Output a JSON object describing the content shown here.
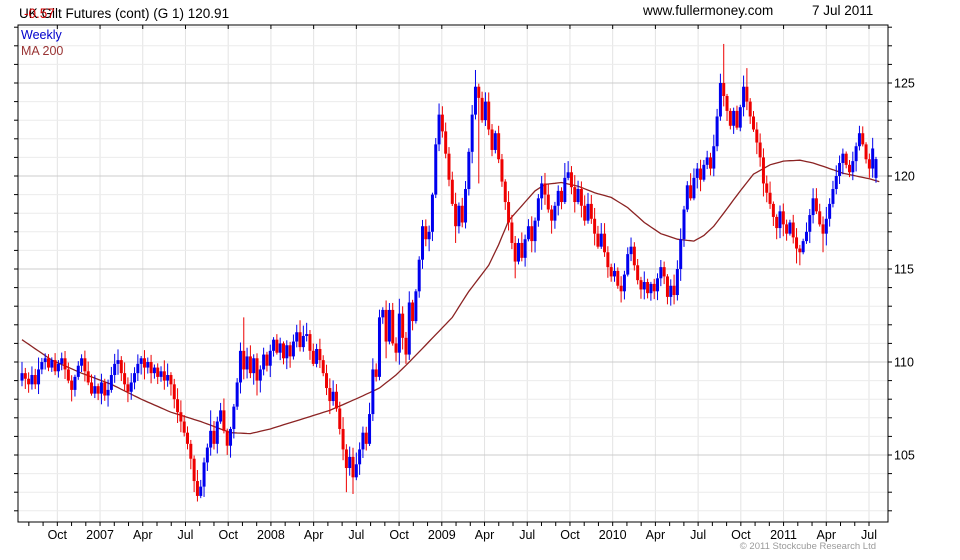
{
  "header": {
    "title_main": "UK Gilt Futures (cont) (G 1) 120.91",
    "title_change": "-0.57",
    "site": "www.fullermoney.com",
    "date": "7 Jul 2011"
  },
  "legend": {
    "series1": "Weekly",
    "series2": "MA 200"
  },
  "footer": {
    "copyright": "© 2011 Stockcube Research Ltd"
  },
  "colors": {
    "up": "#0000ee",
    "down": "#ee0000",
    "ma": "#8b2323",
    "change_red": "#cc0000",
    "weekly_blue": "#0000cc",
    "ma_label": "#993333",
    "grid_minor": "#ececec",
    "grid_major": "#cdcdcd",
    "grid_vert": "#e3e3e3",
    "border": "#000000",
    "axis_text": "#000000"
  },
  "chart_data": {
    "type": "candlestick",
    "timeframe": "weekly",
    "title": "UK Gilt Futures (cont) (G 1)",
    "last_price": 120.91,
    "change": -0.57,
    "x_start": "Jul 2006",
    "x_end": "Jul 2011",
    "y_range": [
      101.4,
      128.1
    ],
    "y_ticks": [
      105,
      110,
      115,
      120,
      125
    ],
    "y_minor_step": 1,
    "x_tick_labels": [
      "Oct",
      "2007",
      "Apr",
      "Jul",
      "Oct",
      "2008",
      "Apr",
      "Jul",
      "Oct",
      "2009",
      "Apr",
      "Jul",
      "Oct",
      "2010",
      "Apr",
      "Jul",
      "Oct",
      "2011",
      "Apr",
      "Jul"
    ],
    "x_tick_months": [
      3,
      6,
      9,
      12,
      15,
      18,
      21,
      24,
      27,
      30,
      33,
      36,
      39,
      42,
      45,
      48,
      51,
      54,
      57,
      60
    ],
    "closes": [
      109.4,
      109.1,
      108.8,
      109.3,
      108.8,
      109.6,
      110.0,
      110.2,
      109.7,
      110.1,
      109.5,
      109.9,
      110.2,
      109.6,
      109.0,
      108.5,
      109.2,
      109.8,
      110.2,
      109.5,
      108.9,
      108.3,
      108.7,
      108.3,
      108.9,
      108.2,
      108.5,
      109.3,
      109.9,
      110.1,
      109.4,
      108.8,
      108.4,
      108.9,
      109.4,
      109.9,
      110.2,
      109.7,
      110.0,
      109.4,
      109.7,
      109.2,
      109.5,
      109.0,
      109.3,
      108.8,
      108.0,
      107.3,
      106.8,
      106.2,
      105.6,
      104.8,
      103.6,
      102.8,
      103.3,
      104.6,
      105.4,
      106.3,
      105.6,
      106.8,
      107.4,
      106.3,
      105.5,
      106.4,
      107.6,
      108.9,
      110.6,
      109.6,
      110.3,
      109.4,
      110.2,
      109.0,
      109.6,
      110.4,
      109.8,
      110.6,
      111.2,
      110.5,
      111.0,
      110.2,
      110.9,
      110.3,
      111.1,
      111.6,
      110.8,
      111.4,
      111.5,
      110.6,
      109.9,
      110.7,
      110.1,
      109.4,
      108.6,
      107.9,
      108.4,
      107.5,
      106.4,
      105.3,
      104.3,
      104.9,
      103.8,
      104.5,
      105.3,
      106.2,
      105.6,
      107.2,
      109.6,
      109.2,
      112.4,
      112.8,
      111.1,
      112.8,
      111.0,
      110.5,
      112.6,
      111.3,
      110.4,
      113.2,
      112.2,
      113.8,
      115.5,
      117.3,
      116.6,
      117.0,
      119.0,
      121.7,
      123.3,
      122.4,
      121.2,
      119.8,
      118.5,
      117.3,
      118.4,
      117.5,
      119.3,
      121.3,
      123.3,
      124.8,
      124.2,
      123.0,
      124.0,
      122.5,
      121.4,
      122.3,
      120.9,
      119.7,
      118.6,
      117.5,
      116.4,
      115.4,
      116.4,
      115.6,
      116.6,
      117.3,
      116.5,
      117.6,
      118.8,
      119.6,
      119.0,
      118.2,
      117.6,
      118.4,
      119.2,
      118.6,
      119.9,
      120.2,
      119.4,
      118.6,
      119.3,
      118.4,
      117.6,
      118.5,
      117.7,
      116.9,
      116.2,
      116.9,
      115.9,
      115.1,
      114.6,
      114.9,
      114.1,
      113.8,
      114.7,
      115.8,
      116.2,
      115.2,
      114.4,
      113.9,
      114.3,
      113.7,
      114.2,
      113.8,
      114.5,
      115.1,
      114.6,
      113.5,
      114.1,
      113.6,
      115.0,
      116.6,
      118.2,
      119.5,
      118.8,
      119.9,
      120.4,
      119.8,
      120.6,
      121.0,
      120.4,
      121.6,
      123.2,
      125.0,
      124.3,
      123.5,
      122.7,
      123.5,
      122.6,
      123.7,
      124.8,
      124.0,
      123.2,
      122.5,
      121.8,
      121.0,
      119.6,
      119.1,
      118.5,
      117.8,
      117.2,
      118.1,
      117.4,
      116.9,
      117.5,
      116.7,
      116.1,
      115.9,
      116.5,
      117.0,
      117.9,
      118.8,
      118.1,
      117.4,
      116.9,
      117.7,
      118.5,
      119.3,
      120.0,
      120.7,
      121.2,
      120.6,
      120.2,
      120.8,
      121.6,
      122.3,
      121.7,
      120.9,
      120.4,
      121.48,
      120.91
    ],
    "open_overrides": {
      "0": 109.0,
      "258": 119.9
    },
    "wick_overrides": {
      "53": {
        "l": 102.5
      },
      "57": {
        "h": 107.4
      },
      "60": {
        "h": 107.8
      },
      "67": {
        "h": 112.4
      },
      "71": {
        "l": 108.2
      },
      "83": {
        "h": 112.0
      },
      "93": {
        "l": 107.2
      },
      "98": {
        "l": 103.0
      },
      "100": {
        "l": 102.9
      },
      "110": {
        "l": 110.2
      },
      "114": {
        "h": 113.4
      },
      "116": {
        "l": 109.9
      },
      "117": {
        "h": 113.8
      },
      "126": {
        "h": 123.9
      },
      "131": {
        "l": 116.4
      },
      "137": {
        "h": 125.7
      },
      "138": {
        "l": 119.6
      },
      "140": {
        "h": 124.5
      },
      "149": {
        "l": 114.5
      },
      "157": {
        "h": 120.0
      },
      "160": {
        "l": 116.9
      },
      "164": {
        "h": 120.7
      },
      "165": {
        "h": 120.8
      },
      "181": {
        "l": 113.2
      },
      "187": {
        "l": 113.4
      },
      "195": {
        "l": 113.1
      },
      "197": {
        "l": 113.1
      },
      "204": {
        "h": 120.7
      },
      "211": {
        "h": 125.5
      },
      "212": {
        "h": 127.1
      },
      "218": {
        "h": 125.4
      },
      "219": {
        "h": 125.8
      },
      "224": {
        "l": 118.9
      },
      "228": {
        "l": 116.6
      },
      "234": {
        "l": 115.3
      },
      "235": {
        "l": 115.2
      },
      "242": {
        "l": 115.9
      },
      "253": {
        "h": 122.7
      },
      "256": {
        "l": 119.9
      }
    },
    "ma200": [
      [
        0,
        111.2
      ],
      [
        9,
        110.1
      ],
      [
        18,
        109.4
      ],
      [
        27,
        108.8
      ],
      [
        36,
        108.0
      ],
      [
        45,
        107.3
      ],
      [
        54,
        106.8
      ],
      [
        63,
        106.2
      ],
      [
        69,
        106.15
      ],
      [
        75,
        106.4
      ],
      [
        84,
        106.9
      ],
      [
        93,
        107.4
      ],
      [
        102,
        108.1
      ],
      [
        108,
        108.6
      ],
      [
        113,
        109.3
      ],
      [
        117,
        110.0
      ],
      [
        123,
        111.1
      ],
      [
        130,
        112.4
      ],
      [
        135,
        113.8
      ],
      [
        141,
        115.2
      ],
      [
        144,
        116.3
      ],
      [
        147,
        117.6
      ],
      [
        150,
        118.2
      ],
      [
        152,
        118.6
      ],
      [
        155,
        119.2
      ],
      [
        158,
        119.55
      ],
      [
        163,
        119.65
      ],
      [
        168,
        119.45
      ],
      [
        173,
        119.1
      ],
      [
        178,
        118.85
      ],
      [
        183,
        118.3
      ],
      [
        188,
        117.5
      ],
      [
        193,
        116.9
      ],
      [
        198,
        116.6
      ],
      [
        203,
        116.5
      ],
      [
        206,
        116.8
      ],
      [
        209,
        117.3
      ],
      [
        212,
        118.0
      ],
      [
        217,
        119.2
      ],
      [
        221,
        120.1
      ],
      [
        226,
        120.6
      ],
      [
        230,
        120.8
      ],
      [
        235,
        120.85
      ],
      [
        239,
        120.7
      ],
      [
        244,
        120.4
      ],
      [
        248,
        120.15
      ],
      [
        252,
        120.0
      ],
      [
        256,
        119.85
      ],
      [
        259,
        119.7
      ]
    ]
  }
}
